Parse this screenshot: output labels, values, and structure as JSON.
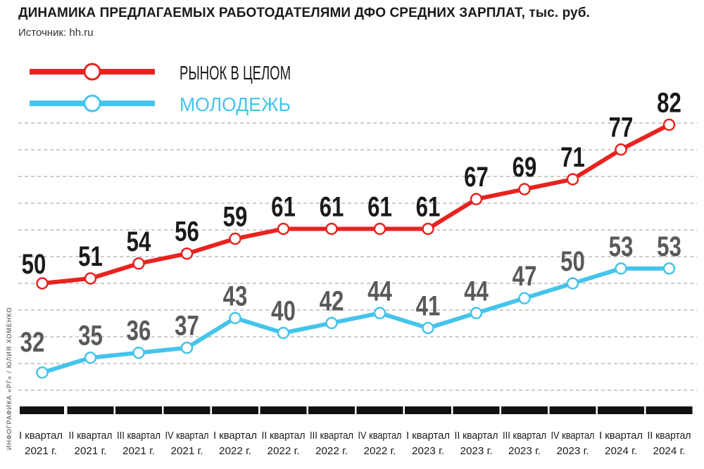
{
  "title": "ДИНАМИКА ПРЕДЛАГАЕМЫХ РАБОТОДАТЕЛЯМИ ДФО СРЕДНИХ ЗАРПЛАТ, тыс. руб.",
  "source": "Источник: hh.ru",
  "credit": "ИНФОГРАФИКА «РГ» / ЮЛИЯ ХОМЕНКО",
  "colors": {
    "market": "#e8231f",
    "youth": "#45c4ea",
    "market_label": "#1a1a1a",
    "youth_label": "#58595b",
    "grid": "#9a9a9a",
    "axis_bar": "#111111"
  },
  "chart_data": {
    "type": "line",
    "title": "ДИНАМИКА ПРЕДЛАГАЕМЫХ РАБОТОДАТЕЛЯМИ ДФО СРЕДНИХ ЗАРПЛАТ, тыс. руб.",
    "categories": [
      [
        "I квартал",
        "2021 г."
      ],
      [
        "II квартал",
        "2021 г."
      ],
      [
        "III квартал",
        "2021 г."
      ],
      [
        "IV квартал",
        "2021 г."
      ],
      [
        "I квартал",
        "2022 г."
      ],
      [
        "II квартал",
        "2022 г."
      ],
      [
        "III квартал",
        "2022 г."
      ],
      [
        "IV квартал",
        "2022 г."
      ],
      [
        "I квартал",
        "2023 г."
      ],
      [
        "II квартал",
        "2023 г."
      ],
      [
        "III квартал",
        "2023 г."
      ],
      [
        "IV квартал",
        "2023 г."
      ],
      [
        "I квартал",
        "2024 г."
      ],
      [
        "II квартал",
        "2024 г."
      ]
    ],
    "series": [
      {
        "name": "РЫНОК В ЦЕЛОМ",
        "values": [
          50,
          51,
          54,
          56,
          59,
          61,
          61,
          61,
          61,
          67,
          69,
          71,
          77,
          82
        ]
      },
      {
        "name": "МОЛОДЕЖЬ",
        "values": [
          32,
          35,
          36,
          37,
          43,
          40,
          42,
          44,
          41,
          44,
          47,
          50,
          53,
          53
        ]
      }
    ],
    "legend": "top-left",
    "grid": "horizontal dashed"
  }
}
